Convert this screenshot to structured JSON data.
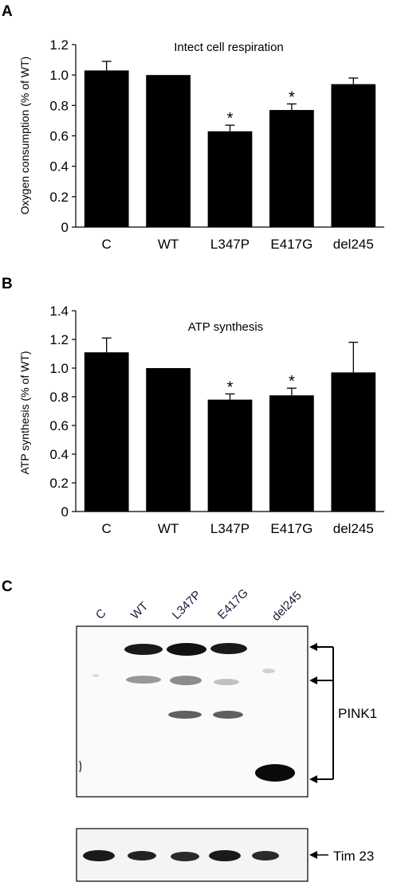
{
  "panels": {
    "a": {
      "letter": "A"
    },
    "b": {
      "letter": "B"
    },
    "c": {
      "letter": "C"
    }
  },
  "chart_data": [
    {
      "type": "bar",
      "title": "Intect cell respiration",
      "ylabel": "Oxygen consumption (% of WT)",
      "xlabel": "",
      "categories": [
        "C",
        "WT",
        "L347P",
        "E417G",
        "del245"
      ],
      "values": [
        1.03,
        1.0,
        0.63,
        0.77,
        0.94
      ],
      "errors": [
        0.06,
        0.0,
        0.04,
        0.04,
        0.04
      ],
      "significance": [
        "",
        "",
        "*",
        "*",
        ""
      ],
      "ylim": [
        0,
        1.2
      ],
      "yticks": [
        "0",
        "0.2",
        "0.4",
        "0.6",
        "0.8",
        "1.0",
        "1.2"
      ],
      "bar_color": "#000000",
      "grid": false
    },
    {
      "type": "bar",
      "title": "ATP synthesis",
      "ylabel": "ATP synthesis (% of WT)",
      "xlabel": "",
      "categories": [
        "C",
        "WT",
        "L347P",
        "E417G",
        "del245"
      ],
      "values": [
        1.11,
        1.0,
        0.78,
        0.81,
        0.97
      ],
      "errors": [
        0.1,
        0.0,
        0.04,
        0.05,
        0.21
      ],
      "significance": [
        "",
        "",
        "*",
        "*",
        ""
      ],
      "ylim": [
        0,
        1.4
      ],
      "yticks": [
        "0",
        "0.2",
        "0.4",
        "0.6",
        "0.8",
        "1.0",
        "1.2",
        "1.4"
      ],
      "bar_color": "#000000",
      "grid": false
    }
  ],
  "blot": {
    "lanes": [
      "C",
      "WT",
      "L347P",
      "E417G",
      "del245"
    ],
    "pink1_label": "PINK1",
    "tim23_label": "Tim 23"
  }
}
